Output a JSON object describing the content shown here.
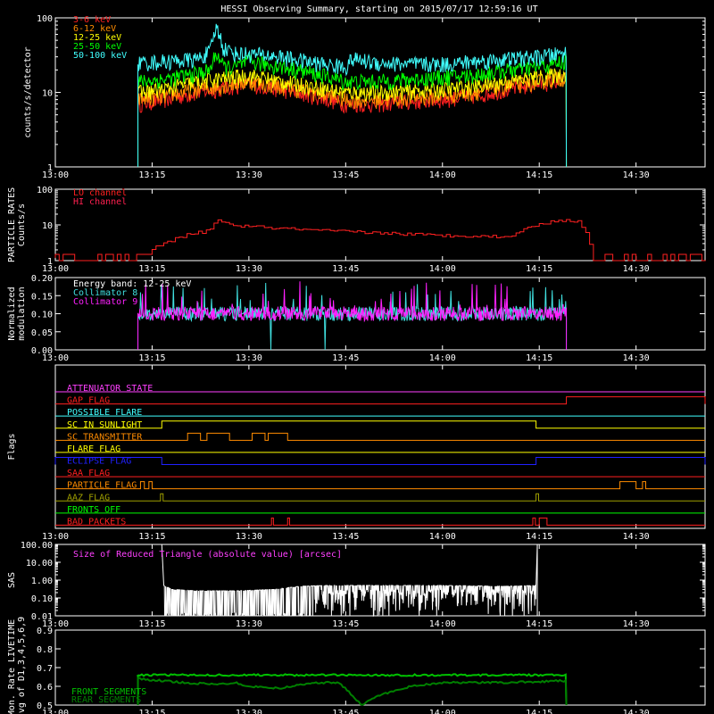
{
  "title": "HESSI Observing Summary, starting on 2015/07/17 12:59:16 UT",
  "time_ticks": [
    "13:00",
    "13:15",
    "13:30",
    "13:45",
    "14:00",
    "14:15",
    "14:30"
  ],
  "colors": {
    "frame": "#ffffff",
    "c3_6": "#ff2020",
    "c6_12": "#ff8c00",
    "c12_25": "#ffff00",
    "c25_50": "#00ff00",
    "c50_100": "#40ffff",
    "particle": "#ff2020",
    "collim8": "#40e0e0",
    "collim9": "#ff20ff",
    "sas": "#ffffff",
    "sas_label": "#ff40ff",
    "livetime_front": "#00c000",
    "livetime_rear": "#008000"
  },
  "chart_data": [
    {
      "type": "line",
      "ylabel": "counts/s/detector",
      "yscale": "log",
      "ylim": [
        1,
        100
      ],
      "ytick_labels": [
        "1",
        "10",
        "100"
      ],
      "xlim_minutes": [
        0,
        100.7
      ],
      "data_window_minutes": [
        12.8,
        79.2
      ],
      "series": [
        {
          "name": "3-6 keV",
          "color": "#ff2020",
          "x": [
            12.8,
            17,
            22,
            25,
            30,
            35,
            40,
            45,
            50,
            55,
            60,
            65,
            70,
            75,
            79.2
          ],
          "values": [
            7,
            8,
            10,
            11,
            13,
            11,
            9,
            7,
            7,
            7.5,
            8,
            9,
            11,
            13,
            15
          ]
        },
        {
          "name": "6-12 keV",
          "color": "#ff8c00",
          "x": [
            12.8,
            17,
            22,
            25,
            30,
            35,
            40,
            45,
            50,
            55,
            60,
            65,
            70,
            75,
            79.2
          ],
          "values": [
            8,
            9,
            11,
            12,
            14,
            12,
            10,
            8,
            8,
            8.5,
            9,
            10,
            12,
            14,
            16
          ]
        },
        {
          "name": "12-25 keV",
          "color": "#ffff00",
          "x": [
            12.8,
            17,
            22,
            25,
            30,
            35,
            40,
            45,
            50,
            55,
            60,
            65,
            70,
            75,
            79.2
          ],
          "values": [
            10,
            11,
            14,
            15,
            17,
            14,
            12,
            10,
            10,
            10.5,
            11,
            12,
            14,
            16,
            18
          ]
        },
        {
          "name": "25-50 keV",
          "color": "#00ff00",
          "x": [
            12.8,
            17,
            22,
            24,
            25,
            26,
            28,
            30,
            35,
            40,
            45,
            50,
            55,
            60,
            65,
            70,
            75,
            79.2
          ],
          "values": [
            14,
            15,
            18,
            20,
            34,
            22,
            22,
            26,
            22,
            18,
            14,
            14,
            15,
            16,
            17,
            20,
            22,
            26
          ]
        },
        {
          "name": "50-100 keV",
          "color": "#40ffff",
          "x": [
            12.8,
            17,
            22,
            24,
            25,
            26,
            28,
            30,
            35,
            40,
            45,
            46,
            50,
            55,
            60,
            65,
            70,
            75,
            79.2
          ],
          "values": [
            25,
            26,
            28,
            35,
            75,
            40,
            33,
            33,
            30,
            25,
            22,
            28,
            25,
            24,
            24,
            26,
            28,
            30,
            34
          ]
        }
      ]
    },
    {
      "type": "line",
      "ylabel": "PARTICLE RATES Counts/s",
      "yscale": "log",
      "ylim": [
        1,
        100
      ],
      "ytick_labels": [
        "1",
        "10",
        "100"
      ],
      "series": [
        {
          "name": "LO channel",
          "color": "#ff2020",
          "x": [
            0,
            13,
            17,
            20,
            24,
            25,
            27,
            30,
            35,
            40,
            45,
            50,
            55,
            60,
            65,
            70,
            74,
            78,
            81,
            83,
            86,
            100.7
          ],
          "values": [
            1.2,
            1.4,
            3,
            5,
            7,
            15,
            10,
            9,
            8,
            7,
            6.5,
            6,
            5.5,
            5,
            5,
            4.5,
            9,
            14,
            12,
            2,
            1.3,
            1.2
          ]
        },
        {
          "name": "HI channel",
          "color": "#ff2050",
          "x": [],
          "values": []
        }
      ]
    },
    {
      "type": "line",
      "ylabel": "Normalized modulation",
      "ylim": [
        0,
        0.2
      ],
      "ytick_labels": [
        "0.00",
        "0.05",
        "0.10",
        "0.15",
        "0.20"
      ],
      "annotation": "Energy band: 12-25 keV",
      "series": [
        {
          "name": "Collimator 8",
          "color": "#40e0e0",
          "x": [
            12.8,
            79.2
          ],
          "values": [
            0.1,
            0.1
          ]
        },
        {
          "name": "Collimator 9",
          "color": "#ff20ff",
          "x": [
            12.8,
            79.2
          ],
          "values": [
            0.1,
            0.1
          ]
        }
      ]
    },
    {
      "type": "flags",
      "ylabel": "Flags",
      "flags": [
        {
          "name": "ATTENUATOR STATE",
          "color": "#ff40ff",
          "segments": []
        },
        {
          "name": "GAP FLAG",
          "color": "#ff2020",
          "segments": [
            [
              79.2,
              100.7
            ]
          ]
        },
        {
          "name": "POSSIBLE FLARE",
          "color": "#40ffff",
          "segments": []
        },
        {
          "name": "SC IN SUNLIGHT",
          "color": "#ffff00",
          "segments": [
            [
              16.5,
              74.5
            ]
          ]
        },
        {
          "name": "SC TRANSMITTER",
          "color": "#ff8c00",
          "segments": [
            [
              20.5,
              22.5
            ],
            [
              23.5,
              27
            ],
            [
              30.5,
              32.5
            ],
            [
              33,
              36
            ]
          ]
        },
        {
          "name": "FLARE FLAG",
          "color": "#ffff00",
          "segments": []
        },
        {
          "name": "ECLIPSE FLAG",
          "color": "#2020ff",
          "segments": [
            [
              0,
              16.5
            ],
            [
              74.5,
              100.7
            ]
          ]
        },
        {
          "name": "SAA FLAG",
          "color": "#ff2020",
          "segments": []
        },
        {
          "name": "PARTICLE FLAG",
          "color": "#ff8c00",
          "segments": [
            [
              13.2,
              13.8
            ],
            [
              14.5,
              15
            ],
            [
              87.5,
              90
            ],
            [
              91,
              91.5
            ]
          ]
        },
        {
          "name": "AAZ FLAG",
          "color": "#a0a000",
          "segments": [
            [
              16.3,
              16.7
            ],
            [
              74.5,
              74.9
            ]
          ]
        },
        {
          "name": "FRONTS OFF",
          "color": "#00ff00",
          "segments": []
        },
        {
          "name": "BAD PACKETS",
          "color": "#ff2020",
          "segments": [
            [
              33.5,
              33.8
            ],
            [
              36,
              36.3
            ],
            [
              74,
              74.4
            ],
            [
              75,
              76.2
            ]
          ]
        }
      ]
    },
    {
      "type": "line",
      "ylabel": "SAS",
      "yscale": "log",
      "ylim": [
        0.01,
        100
      ],
      "ytick_labels": [
        "0.01",
        "0.10",
        "1.00",
        "10.00",
        "100.00"
      ],
      "annotation": "Size of Reduced Triangle (absolute value) [arcsec]",
      "series": [
        {
          "name": "",
          "color": "#ffffff",
          "x": [
            16.5,
            16.8,
            18,
            22,
            28,
            34,
            38,
            42,
            50,
            60,
            70,
            74.5,
            74.7
          ],
          "values": [
            100,
            0.5,
            0.3,
            0.25,
            0.25,
            0.3,
            0.45,
            0.5,
            0.5,
            0.5,
            0.45,
            0.5,
            100
          ]
        }
      ]
    },
    {
      "type": "line",
      "ylabel": "Mon. Rate LIVETIME avg of D1,3,4,5,6,9",
      "ylim": [
        0.5,
        0.9
      ],
      "ytick_labels": [
        "0.5",
        "0.6",
        "0.7",
        "0.8",
        "0.9"
      ],
      "series": [
        {
          "name": "FRONT SEGMENTS",
          "color": "#00c000",
          "x": [
            12.8,
            79.2
          ],
          "values": [
            0.66,
            0.66
          ]
        },
        {
          "name": "REAR SEGMENTS",
          "color": "#008000",
          "x": [
            12.8,
            20,
            25,
            28,
            30,
            35,
            40,
            44,
            47.5,
            50,
            55,
            60,
            70,
            79.2
          ],
          "values": [
            0.64,
            0.62,
            0.61,
            0.62,
            0.6,
            0.59,
            0.62,
            0.62,
            0.5,
            0.55,
            0.6,
            0.62,
            0.62,
            0.63
          ]
        }
      ]
    }
  ]
}
